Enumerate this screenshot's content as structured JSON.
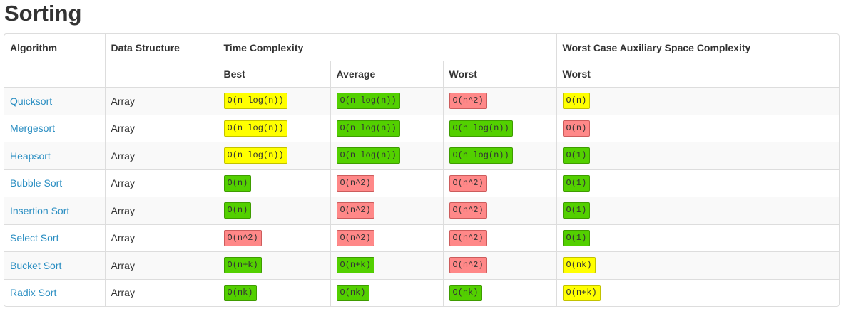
{
  "page_title": "Sorting",
  "headers": {
    "algorithm": "Algorithm",
    "data_structure": "Data Structure",
    "time_complexity": "Time Complexity",
    "space_complexity": "Worst Case Auxiliary Space Complexity",
    "best": "Best",
    "average": "Average",
    "worst": "Worst",
    "space_worst": "Worst"
  },
  "colors": {
    "green": "#53d000",
    "yellow": "#ffff00",
    "red": "#ff8888",
    "link": "#2a8ec2"
  },
  "rows": [
    {
      "algorithm": "Quicksort",
      "data_structure": "Array",
      "best": {
        "text": "O(n log(n))",
        "rating": "yellow"
      },
      "average": {
        "text": "O(n log(n))",
        "rating": "green"
      },
      "worst": {
        "text": "O(n^2)",
        "rating": "red"
      },
      "space": {
        "text": "O(n)",
        "rating": "yellow"
      }
    },
    {
      "algorithm": "Mergesort",
      "data_structure": "Array",
      "best": {
        "text": "O(n log(n))",
        "rating": "yellow"
      },
      "average": {
        "text": "O(n log(n))",
        "rating": "green"
      },
      "worst": {
        "text": "O(n log(n))",
        "rating": "green"
      },
      "space": {
        "text": "O(n)",
        "rating": "red"
      }
    },
    {
      "algorithm": "Heapsort",
      "data_structure": "Array",
      "best": {
        "text": "O(n log(n))",
        "rating": "yellow"
      },
      "average": {
        "text": "O(n log(n))",
        "rating": "green"
      },
      "worst": {
        "text": "O(n log(n))",
        "rating": "green"
      },
      "space": {
        "text": "O(1)",
        "rating": "green"
      }
    },
    {
      "algorithm": "Bubble Sort",
      "data_structure": "Array",
      "best": {
        "text": "O(n)",
        "rating": "green"
      },
      "average": {
        "text": "O(n^2)",
        "rating": "red"
      },
      "worst": {
        "text": "O(n^2)",
        "rating": "red"
      },
      "space": {
        "text": "O(1)",
        "rating": "green"
      }
    },
    {
      "algorithm": "Insertion Sort",
      "data_structure": "Array",
      "best": {
        "text": "O(n)",
        "rating": "green"
      },
      "average": {
        "text": "O(n^2)",
        "rating": "red"
      },
      "worst": {
        "text": "O(n^2)",
        "rating": "red"
      },
      "space": {
        "text": "O(1)",
        "rating": "green"
      }
    },
    {
      "algorithm": "Select Sort",
      "data_structure": "Array",
      "best": {
        "text": "O(n^2)",
        "rating": "red"
      },
      "average": {
        "text": "O(n^2)",
        "rating": "red"
      },
      "worst": {
        "text": "O(n^2)",
        "rating": "red"
      },
      "space": {
        "text": "O(1)",
        "rating": "green"
      }
    },
    {
      "algorithm": "Bucket Sort",
      "data_structure": "Array",
      "best": {
        "text": "O(n+k)",
        "rating": "green"
      },
      "average": {
        "text": "O(n+k)",
        "rating": "green"
      },
      "worst": {
        "text": "O(n^2)",
        "rating": "red"
      },
      "space": {
        "text": "O(nk)",
        "rating": "yellow"
      }
    },
    {
      "algorithm": "Radix Sort",
      "data_structure": "Array",
      "best": {
        "text": "O(nk)",
        "rating": "green"
      },
      "average": {
        "text": "O(nk)",
        "rating": "green"
      },
      "worst": {
        "text": "O(nk)",
        "rating": "green"
      },
      "space": {
        "text": "O(n+k)",
        "rating": "yellow"
      }
    }
  ]
}
